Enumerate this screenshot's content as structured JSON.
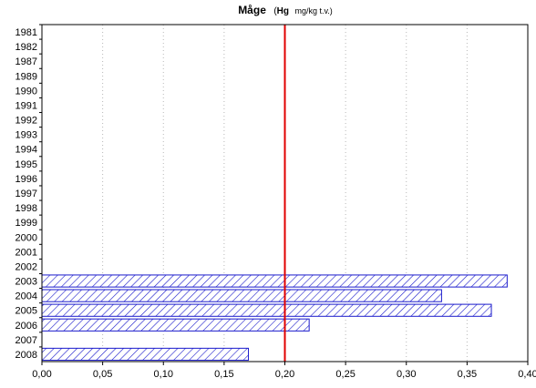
{
  "chart_data": {
    "type": "bar",
    "orientation": "horizontal",
    "title": {
      "main": "Måge",
      "open_paren": "(",
      "bold_part": "Hg",
      "unit": "mg/kg t.v.)"
    },
    "categories": [
      "1981",
      "1982",
      "1987",
      "1989",
      "1990",
      "1991",
      "1992",
      "1993",
      "1994",
      "1995",
      "1996",
      "1997",
      "1998",
      "1999",
      "2000",
      "2001",
      "2002",
      "2003",
      "2004",
      "2005",
      "2006",
      "2007",
      "2008"
    ],
    "values": [
      null,
      null,
      null,
      null,
      null,
      null,
      null,
      null,
      null,
      null,
      null,
      null,
      null,
      null,
      null,
      null,
      null,
      0.383,
      0.329,
      0.37,
      0.22,
      null,
      0.17
    ],
    "xlim": [
      0,
      0.4
    ],
    "xticks": [
      "0,00",
      "0,05",
      "0,10",
      "0,15",
      "0,20",
      "0,25",
      "0,30",
      "0,35",
      "0,40"
    ],
    "reference_line": {
      "value": 0.2,
      "color": "#e00000"
    },
    "bar_color": "#1a1acc",
    "bar_fill": "diagonal-hatch",
    "grid": "vertical-dotted",
    "xlabel": "",
    "ylabel": ""
  }
}
